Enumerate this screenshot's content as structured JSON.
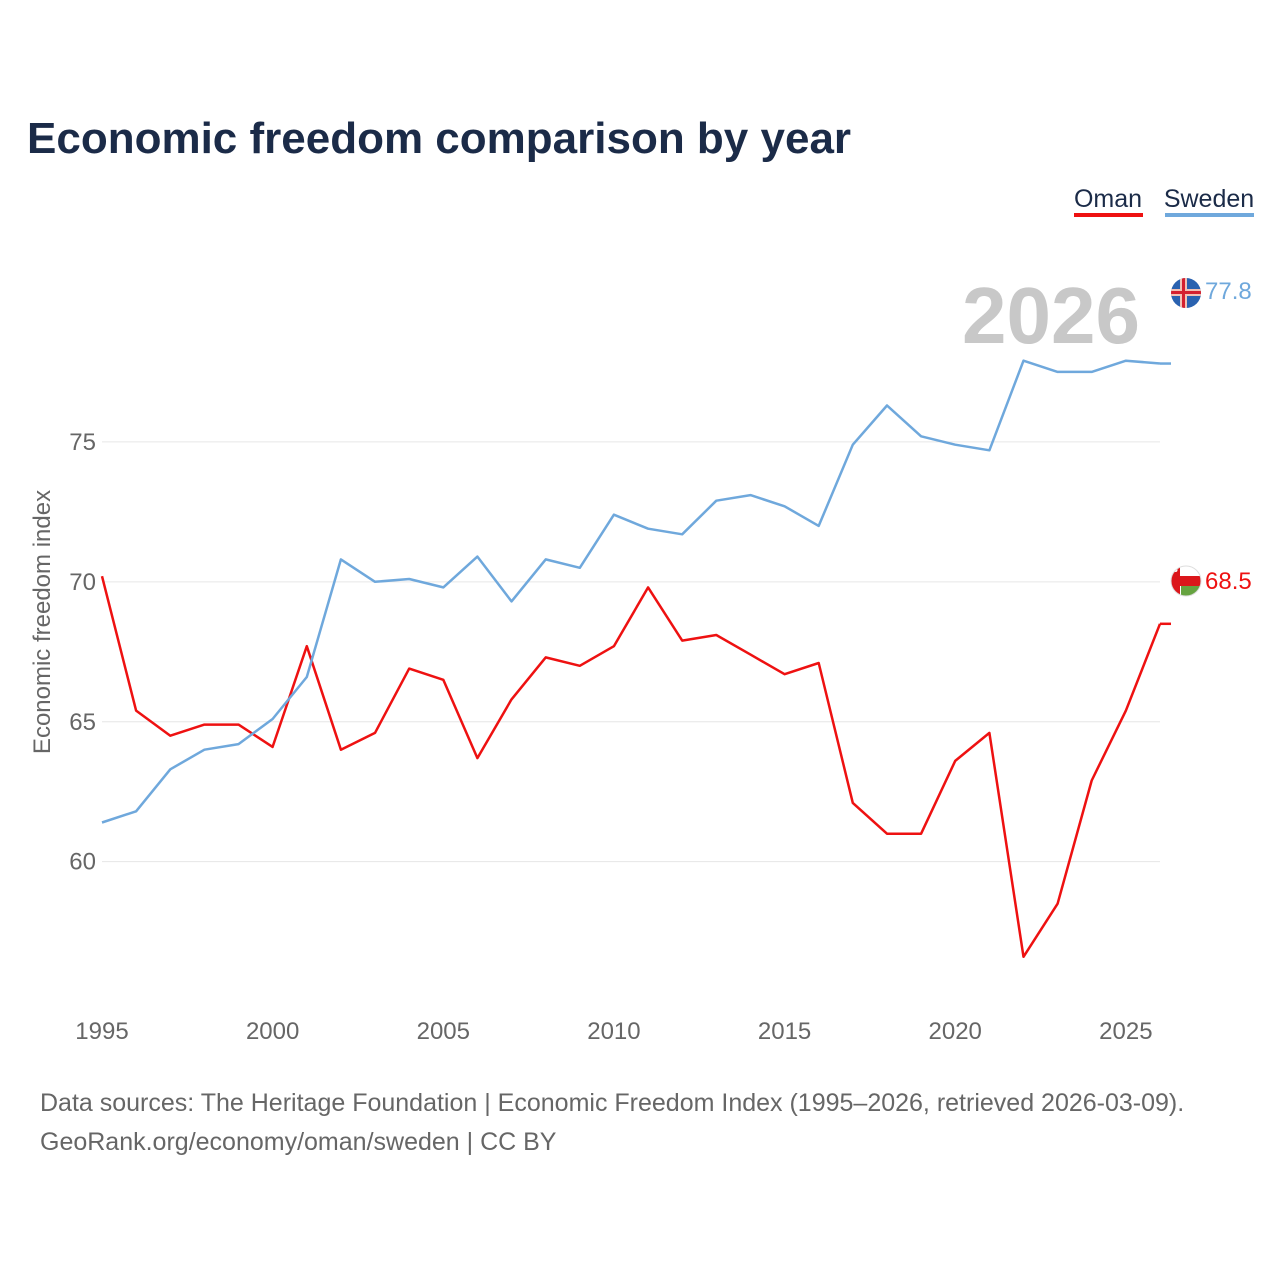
{
  "chart_data": {
    "type": "line",
    "title": "Economic freedom comparison by year",
    "xlabel": "",
    "ylabel": "Economic freedom index",
    "xlim": [
      1995,
      2026
    ],
    "ylim": [
      54.7,
      81.5
    ],
    "yticks": [
      60,
      65,
      70,
      75
    ],
    "xticks": [
      1995,
      2000,
      2005,
      2010,
      2015,
      2020,
      2025
    ],
    "year_watermark": "2026",
    "x": [
      1995,
      1996,
      1997,
      1998,
      1999,
      2000,
      2001,
      2002,
      2003,
      2004,
      2005,
      2006,
      2007,
      2008,
      2009,
      2010,
      2011,
      2012,
      2013,
      2014,
      2015,
      2016,
      2017,
      2018,
      2019,
      2020,
      2021,
      2022,
      2023,
      2024,
      2025,
      2026
    ],
    "series": [
      {
        "name": "Oman",
        "color": "#ee1111",
        "end_label": "68.5",
        "flag_icon": "oman-flag-icon",
        "values": [
          70.2,
          65.4,
          64.5,
          64.9,
          64.9,
          64.1,
          67.7,
          64.0,
          64.6,
          66.9,
          66.5,
          63.7,
          65.8,
          67.3,
          67.0,
          67.7,
          69.8,
          67.9,
          68.1,
          67.4,
          66.7,
          67.1,
          62.1,
          61.0,
          61.0,
          63.6,
          64.6,
          56.6,
          58.5,
          62.9,
          65.4,
          68.5
        ]
      },
      {
        "name": "Sweden",
        "color": "#6fa8dc",
        "end_label": "77.8",
        "flag_icon": "sweden-flag-icon",
        "values": [
          61.4,
          61.8,
          63.3,
          64.0,
          64.2,
          65.1,
          66.6,
          70.8,
          70.0,
          70.1,
          69.8,
          70.9,
          69.3,
          70.8,
          70.5,
          72.4,
          71.9,
          71.7,
          72.9,
          73.1,
          72.7,
          72.0,
          74.9,
          76.3,
          75.2,
          74.9,
          74.7,
          77.9,
          77.5,
          77.5,
          77.9,
          77.8
        ]
      }
    ],
    "legend": {
      "placement": "top-right",
      "entries": [
        "Oman",
        "Sweden"
      ]
    },
    "grid": true
  },
  "footer": {
    "sources": "Data sources: The Heritage Foundation | Economic Freedom Index (1995–2026, retrieved 2026-03-09).",
    "credit": "GeoRank.org/economy/oman/sweden | CC BY"
  }
}
